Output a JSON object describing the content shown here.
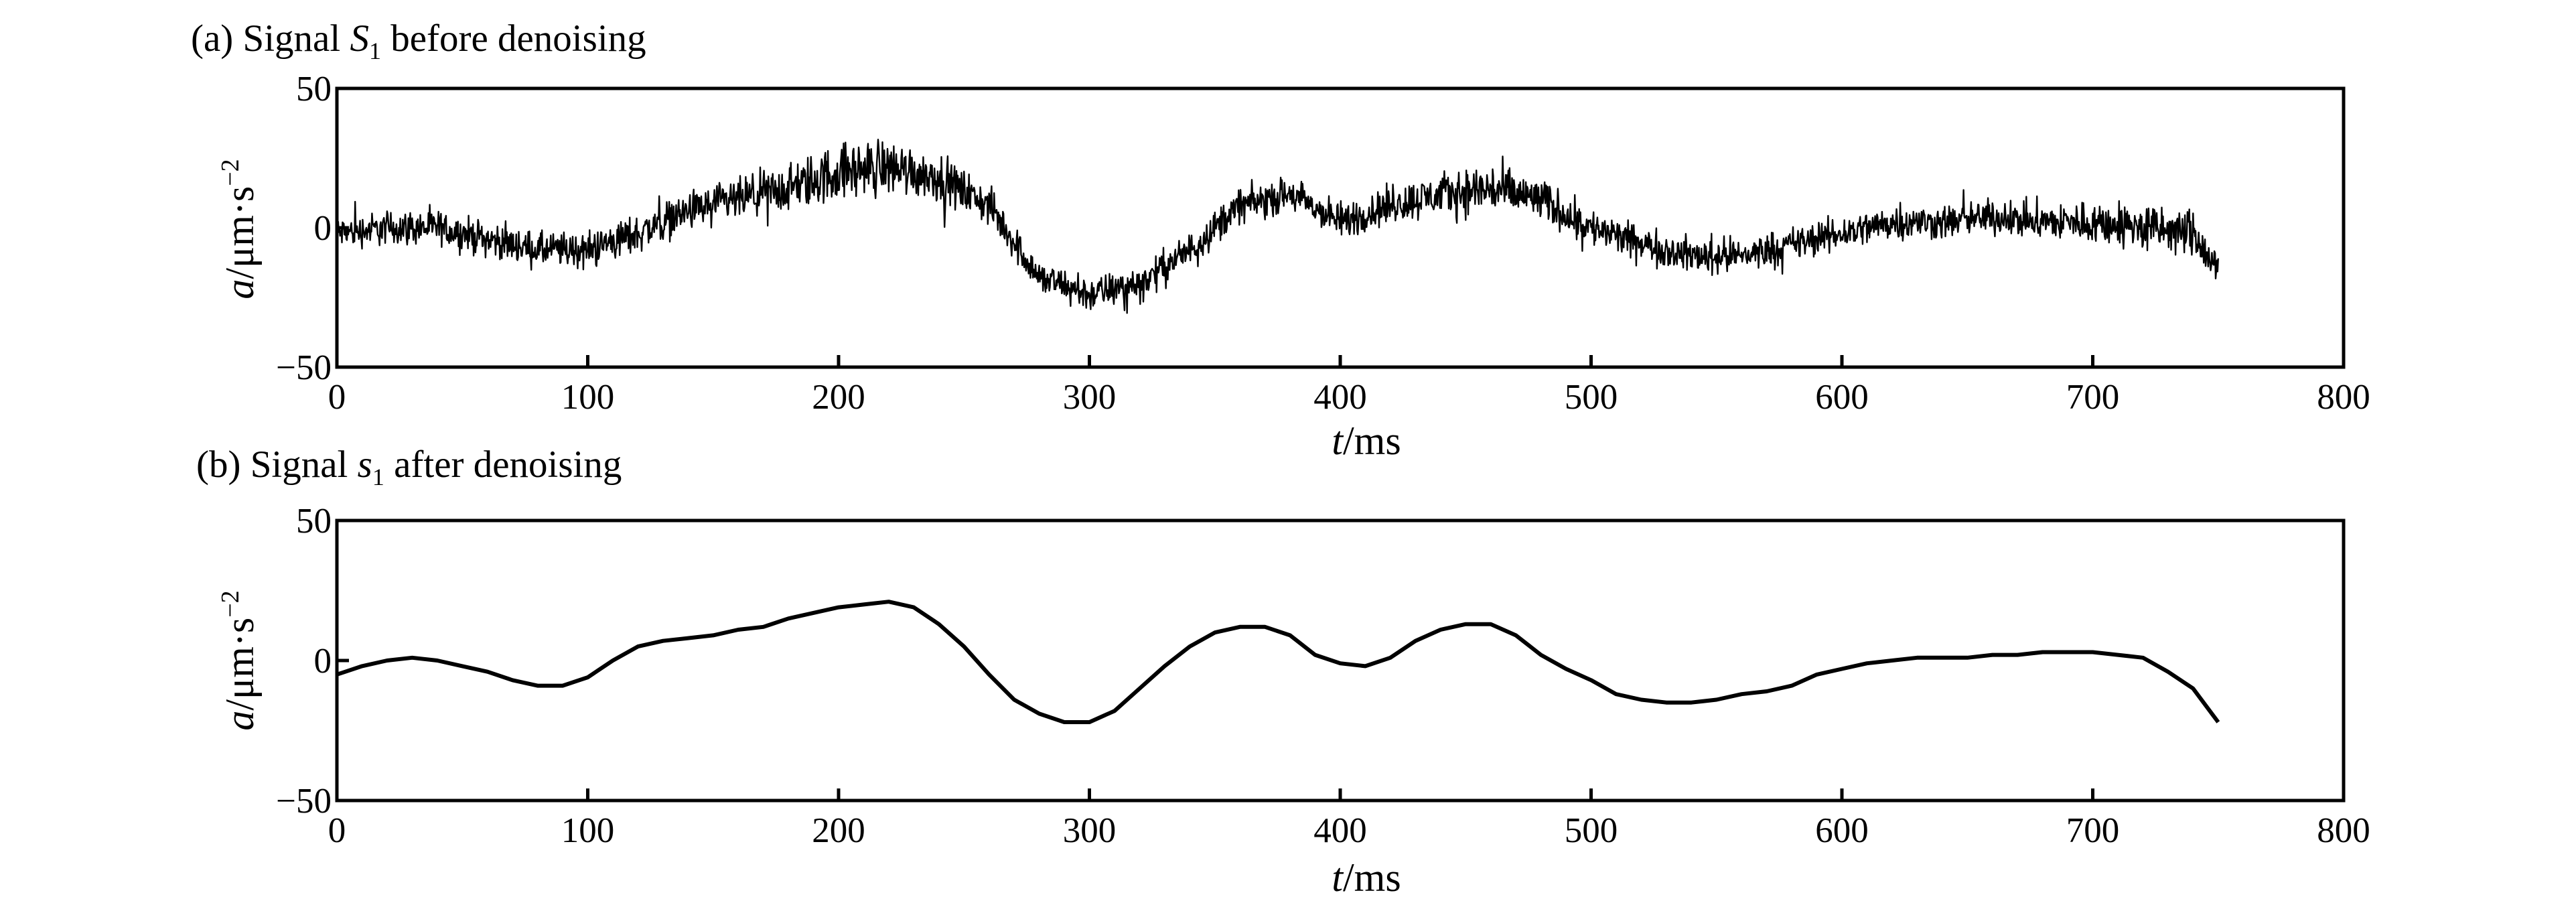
{
  "chart_data": [
    {
      "panel": "a",
      "type": "line",
      "title": "(a) Signal S1 before denoising",
      "title_prefix": "(a) Signal ",
      "title_symbol": "S",
      "title_subscript": "1",
      "title_suffix": " before denoising",
      "xlabel": "t/ms",
      "xlabel_symbol": "t",
      "xlabel_unit": "/ms",
      "ylabel": "a/μm·s−2",
      "ylabel_symbol": "a",
      "ylabel_unit": "/μm·s",
      "ylabel_exp": "−2",
      "xlim": [
        0,
        800
      ],
      "ylim": [
        -50,
        50
      ],
      "xticks": [
        0,
        100,
        200,
        300,
        400,
        500,
        600,
        700,
        800
      ],
      "yticks": [
        -50,
        0,
        50
      ],
      "xtick_labels": [
        "0",
        "100",
        "200",
        "300",
        "400",
        "500",
        "600",
        "700",
        "800"
      ],
      "ytick_labels": [
        "−50",
        "0",
        "50"
      ],
      "grid": false,
      "line_color": "#000000",
      "noisy": true,
      "x": [
        0,
        20,
        40,
        60,
        80,
        100,
        120,
        140,
        160,
        180,
        200,
        220,
        240,
        260,
        280,
        300,
        320,
        340,
        360,
        380,
        400,
        420,
        440,
        460,
        480,
        500,
        520,
        540,
        560,
        580,
        600,
        620,
        640,
        660,
        680,
        700,
        720,
        740,
        750
      ],
      "y": [
        -2,
        0,
        0,
        -4,
        -8,
        -8,
        -2,
        6,
        10,
        14,
        20,
        22,
        18,
        8,
        -18,
        -24,
        -20,
        -8,
        8,
        12,
        2,
        8,
        12,
        14,
        10,
        0,
        -6,
        -10,
        -10,
        -6,
        -2,
        2,
        2,
        4,
        2,
        2,
        0,
        -2,
        -16
      ],
      "noise_amplitude": [
        8,
        9,
        9,
        9,
        9,
        10,
        10,
        10,
        11,
        13,
        15,
        15,
        12,
        10,
        9,
        9,
        9,
        9,
        9,
        9,
        10,
        10,
        11,
        14,
        11,
        10,
        9,
        9,
        9,
        9,
        9,
        9,
        9,
        9,
        10,
        11,
        13,
        12,
        11
      ]
    },
    {
      "panel": "b",
      "type": "line",
      "title": "(b) Signal s1 after denoising",
      "title_prefix": "(b) Signal ",
      "title_symbol": "s",
      "title_subscript": "1",
      "title_suffix": " after denoising",
      "xlabel": "t/ms",
      "xlabel_symbol": "t",
      "xlabel_unit": "/ms",
      "ylabel": "a/μm·s−2",
      "ylabel_symbol": "a",
      "ylabel_unit": "/μm·s",
      "ylabel_exp": "−2",
      "xlim": [
        0,
        800
      ],
      "ylim": [
        -50,
        50
      ],
      "xticks": [
        0,
        100,
        200,
        300,
        400,
        500,
        600,
        700,
        800
      ],
      "yticks": [
        -50,
        0,
        50
      ],
      "xtick_labels": [
        "0",
        "100",
        "200",
        "300",
        "400",
        "500",
        "600",
        "700",
        "800"
      ],
      "ytick_labels": [
        "−50",
        "0",
        "50"
      ],
      "grid": false,
      "line_color": "#000000",
      "noisy": false,
      "x": [
        0,
        10,
        20,
        30,
        40,
        50,
        60,
        70,
        80,
        90,
        100,
        110,
        120,
        130,
        140,
        150,
        160,
        170,
        180,
        190,
        200,
        210,
        220,
        230,
        240,
        250,
        260,
        270,
        280,
        290,
        300,
        310,
        320,
        330,
        340,
        350,
        360,
        370,
        380,
        390,
        400,
        410,
        420,
        430,
        440,
        450,
        460,
        470,
        480,
        490,
        500,
        510,
        520,
        530,
        540,
        550,
        560,
        570,
        580,
        590,
        600,
        610,
        620,
        630,
        640,
        650,
        660,
        670,
        680,
        690,
        700,
        710,
        720,
        730,
        740,
        750
      ],
      "y": [
        -5,
        -2,
        0,
        1,
        0,
        -2,
        -4,
        -7,
        -9,
        -9,
        -6,
        0,
        5,
        7,
        8,
        9,
        11,
        12,
        15,
        17,
        19,
        20,
        21,
        19,
        13,
        5,
        -5,
        -14,
        -19,
        -22,
        -22,
        -18,
        -10,
        -2,
        5,
        10,
        12,
        12,
        9,
        2,
        -1,
        -2,
        1,
        7,
        11,
        13,
        13,
        9,
        2,
        -3,
        -7,
        -12,
        -14,
        -15,
        -15,
        -14,
        -12,
        -11,
        -9,
        -5,
        -3,
        -1,
        0,
        1,
        1,
        1,
        2,
        2,
        3,
        3,
        3,
        2,
        1,
        -4,
        -10,
        -22
      ]
    }
  ]
}
